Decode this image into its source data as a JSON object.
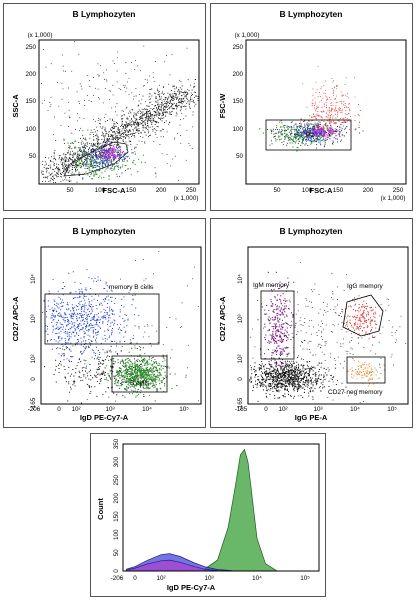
{
  "colors": {
    "green": "#2e8b2e",
    "blue": "#1f3fd6",
    "magenta": "#c02bc4",
    "red": "#e03030",
    "purple": "#7a1c86",
    "orange": "#e8902a",
    "black": "#111111"
  },
  "chart_data": [
    {
      "type": "scatter",
      "title": "B Lymphozyten",
      "xlabel": "FSC-A",
      "ylabel": "SSC-A",
      "x_multiplier": "(x 1,000)",
      "y_multiplier": "(x 1,000)",
      "xlim": [
        0,
        262
      ],
      "ylim": [
        0,
        262
      ],
      "x_ticks": [
        "50",
        "100",
        "150",
        "200",
        "250"
      ],
      "y_ticks": [
        "50",
        "100",
        "150",
        "200",
        "250"
      ],
      "series": [],
      "gates": []
    },
    {
      "type": "scatter",
      "title": "B Lymphozyten",
      "xlabel": "FSC-A",
      "ylabel": "FSC-W",
      "x_multiplier": "(x 1,000)",
      "y_multiplier": "(x 1,000)",
      "xlim": [
        0,
        262
      ],
      "ylim": [
        0,
        262
      ],
      "x_ticks": [
        "50",
        "100",
        "150",
        "200",
        "250"
      ],
      "y_ticks": [
        "50",
        "100",
        "150",
        "200",
        "250"
      ],
      "series": [],
      "gates": [
        {
          "label": "P2",
          "x": [
            30,
            175
          ],
          "y": [
            55,
            100
          ]
        }
      ]
    },
    {
      "type": "scatter",
      "title": "B Lymphozyten",
      "xlabel": "IgD PE-Cy7-A",
      "ylabel": "CD27 APC-A",
      "x_ticks": [
        "-206",
        "0",
        "10²",
        "10³",
        "10⁴",
        "10⁵"
      ],
      "y_ticks": [
        "-165",
        "0",
        "10²",
        "10³",
        "10⁴"
      ],
      "series": [],
      "gates": [
        {
          "label": "memory B cells",
          "x": [
            0,
            3000
          ],
          "y": [
            300,
            30000
          ]
        },
        {
          "label": "B cells",
          "x": [
            800,
            10000
          ],
          "y": [
            -120,
            180
          ]
        }
      ]
    },
    {
      "type": "scatter",
      "title": "B Lymphozyten",
      "xlabel": "IgG PE-A",
      "ylabel": "CD27 APC-A",
      "x_ticks": [
        "-185",
        "0",
        "10²",
        "10³",
        "10⁴",
        "10⁵"
      ],
      "y_ticks": [
        "-165",
        "0",
        "10²",
        "10³",
        "10⁴"
      ],
      "series": [],
      "gates": [
        {
          "label": "IgM memory",
          "x": [
            -20,
            150
          ],
          "y": [
            150,
            30000
          ]
        },
        {
          "label": "IgG memory",
          "x": [
            5000,
            40000
          ],
          "y": [
            1000,
            30000
          ]
        },
        {
          "label": "CD27 neg memory",
          "x": [
            5000,
            40000
          ],
          "y": [
            0,
            150
          ]
        }
      ]
    },
    {
      "type": "area",
      "title": "",
      "xlabel": "IgD PE-Cy7-A",
      "ylabel": "Count",
      "x_ticks": [
        "-206",
        "0",
        "10²",
        "10³",
        "10⁴",
        "10⁵"
      ],
      "y_ticks": [
        "0",
        "50",
        "100",
        "150",
        "200",
        "250",
        "300",
        "350"
      ],
      "ylim": [
        0,
        350
      ],
      "series": [
        {
          "color": "green",
          "x": [
            800,
            1500,
            2500,
            3500,
            4500,
            5500,
            6500,
            8000,
            10000,
            15000,
            25000
          ],
          "y": [
            5,
            30,
            120,
            230,
            320,
            335,
            300,
            200,
            90,
            20,
            2
          ]
        },
        {
          "color": "blue",
          "x": [
            -100,
            0,
            50,
            100,
            150,
            250,
            500,
            800,
            1500,
            3000
          ],
          "y": [
            5,
            12,
            30,
            45,
            48,
            40,
            22,
            12,
            4,
            1
          ]
        },
        {
          "color": "magenta",
          "x": [
            -100,
            0,
            50,
            100,
            150,
            250,
            500,
            800,
            1500
          ],
          "y": [
            3,
            8,
            20,
            28,
            30,
            24,
            12,
            5,
            1
          ]
        }
      ]
    }
  ]
}
